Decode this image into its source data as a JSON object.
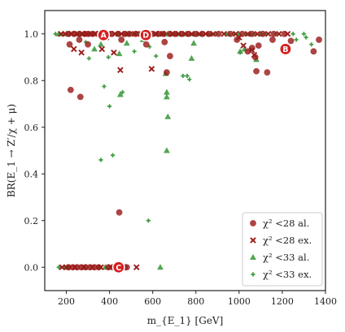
{
  "chart_data": {
    "type": "scatter",
    "title": "",
    "xlabel": "m_{E_1} [GeV]",
    "ylabel": "BR(E_1 → Z′/χ + μ)",
    "xlim": [
      100,
      1400
    ],
    "ylim": [
      -0.1,
      1.1
    ],
    "x_ticks": [
      200,
      400,
      600,
      800,
      1000,
      1200,
      1400
    ],
    "y_ticks": [
      0.0,
      0.2,
      0.4,
      0.6,
      0.8,
      1.0
    ],
    "x_tick_labels": [
      "200",
      "400",
      "600",
      "800",
      "1000",
      "1200",
      "1400"
    ],
    "y_tick_labels": [
      "0.0",
      "0.2",
      "0.4",
      "0.6",
      "0.8",
      "1.0"
    ],
    "grid": false,
    "legend_position": "lower-right",
    "colors": {
      "red_allowed": "#9b1b1b",
      "red_excluded": "#9b1b1b",
      "green_allowed": "#3f9b3f",
      "green_excluded": "#3f9b3f"
    },
    "series": [
      {
        "name": "χ² <28 al.",
        "marker": "circle",
        "points": [
          [
            210,
            1.0
          ],
          [
            235,
            1.0
          ],
          [
            260,
            1.0
          ],
          [
            285,
            1.0
          ],
          [
            300,
            1.0
          ],
          [
            320,
            1.0
          ],
          [
            345,
            1.0
          ],
          [
            380,
            1.0
          ],
          [
            410,
            1.0
          ],
          [
            440,
            1.0
          ],
          [
            470,
            1.0
          ],
          [
            490,
            1.0
          ],
          [
            520,
            1.0
          ],
          [
            550,
            1.0
          ],
          [
            575,
            1.0
          ],
          [
            600,
            1.0
          ],
          [
            625,
            1.0
          ],
          [
            650,
            1.0
          ],
          [
            680,
            1.0
          ],
          [
            705,
            1.0
          ],
          [
            735,
            1.0
          ],
          [
            765,
            1.0
          ],
          [
            800,
            1.0
          ],
          [
            830,
            1.0
          ],
          [
            860,
            1.0
          ],
          [
            905,
            1.0
          ],
          [
            960,
            1.0
          ],
          [
            1015,
            1.0
          ],
          [
            1060,
            1.0
          ],
          [
            1110,
            1.0
          ],
          [
            1160,
            1.0
          ],
          [
            1210,
            1.0
          ],
          [
            260,
            0.975
          ],
          [
            455,
            0.975
          ],
          [
            215,
            0.955
          ],
          [
            300,
            0.955
          ],
          [
            570,
            0.955
          ],
          [
            655,
            0.965
          ],
          [
            990,
            0.975
          ],
          [
            1090,
            0.95
          ],
          [
            1155,
            0.975
          ],
          [
            1240,
            0.97
          ],
          [
            1370,
            0.975
          ],
          [
            1345,
            0.925
          ],
          [
            1075,
            0.9
          ],
          [
            1060,
            0.94
          ],
          [
            1040,
            0.925
          ],
          [
            680,
            0.905
          ],
          [
            665,
            0.835
          ],
          [
            1080,
            0.84
          ],
          [
            1130,
            0.835
          ],
          [
            220,
            0.76
          ],
          [
            265,
            0.73
          ],
          [
            445,
            0.235
          ],
          [
            210,
            0.0
          ],
          [
            230,
            0.0
          ],
          [
            250,
            0.0
          ],
          [
            270,
            0.0
          ],
          [
            290,
            0.0
          ],
          [
            310,
            0.0
          ],
          [
            330,
            0.0
          ],
          [
            350,
            0.0
          ],
          [
            395,
            0.0
          ],
          [
            415,
            0.0
          ],
          [
            440,
            0.0
          ],
          [
            470,
            0.0
          ],
          [
            480,
            0.0
          ]
        ]
      },
      {
        "name": "χ² <28 ex.",
        "marker": "x",
        "points": [
          [
            175,
            1.0
          ],
          [
            195,
            1.0
          ],
          [
            225,
            1.0
          ],
          [
            250,
            1.0
          ],
          [
            275,
            1.0
          ],
          [
            295,
            1.0
          ],
          [
            315,
            1.0
          ],
          [
            335,
            1.0
          ],
          [
            360,
            1.0
          ],
          [
            395,
            1.0
          ],
          [
            425,
            1.0
          ],
          [
            455,
            1.0
          ],
          [
            485,
            1.0
          ],
          [
            515,
            1.0
          ],
          [
            545,
            1.0
          ],
          [
            585,
            1.0
          ],
          [
            615,
            1.0
          ],
          [
            645,
            1.0
          ],
          [
            690,
            1.0
          ],
          [
            720,
            1.0
          ],
          [
            750,
            1.0
          ],
          [
            780,
            1.0
          ],
          [
            815,
            1.0
          ],
          [
            845,
            1.0
          ],
          [
            880,
            1.0
          ],
          [
            930,
            1.0
          ],
          [
            985,
            1.0
          ],
          [
            1040,
            1.0
          ],
          [
            1085,
            1.0
          ],
          [
            1135,
            1.0
          ],
          [
            1185,
            1.0
          ],
          [
            1225,
            1.0
          ],
          [
            385,
            0.985
          ],
          [
            1000,
            0.985
          ],
          [
            1020,
            0.95
          ],
          [
            235,
            0.935
          ],
          [
            270,
            0.92
          ],
          [
            365,
            0.935
          ],
          [
            420,
            0.92
          ],
          [
            1060,
            0.93
          ],
          [
            1070,
            0.91
          ],
          [
            450,
            0.845
          ],
          [
            595,
            0.85
          ],
          [
            180,
            0.0
          ],
          [
            200,
            0.0
          ],
          [
            240,
            0.0
          ],
          [
            280,
            0.0
          ],
          [
            320,
            0.0
          ],
          [
            360,
            0.0
          ],
          [
            405,
            0.0
          ],
          [
            455,
            0.0
          ],
          [
            525,
            0.0
          ]
        ]
      },
      {
        "name": "χ² <33 al.",
        "marker": "triangle",
        "points": [
          [
            165,
            1.0
          ],
          [
            200,
            1.0
          ],
          [
            245,
            1.0
          ],
          [
            280,
            1.0
          ],
          [
            330,
            1.0
          ],
          [
            365,
            1.0
          ],
          [
            400,
            1.0
          ],
          [
            440,
            1.0
          ],
          [
            475,
            1.0
          ],
          [
            530,
            1.0
          ],
          [
            560,
            1.0
          ],
          [
            605,
            1.0
          ],
          [
            640,
            1.0
          ],
          [
            670,
            1.0
          ],
          [
            700,
            1.0
          ],
          [
            725,
            1.0
          ],
          [
            755,
            1.0
          ],
          [
            790,
            1.0
          ],
          [
            825,
            1.0
          ],
          [
            870,
            1.0
          ],
          [
            950,
            1.0
          ],
          [
            1000,
            1.0
          ],
          [
            1050,
            1.0
          ],
          [
            1100,
            1.0
          ],
          [
            360,
            0.955
          ],
          [
            480,
            0.96
          ],
          [
            555,
            0.975
          ],
          [
            1005,
            0.925
          ],
          [
            1025,
            0.935
          ],
          [
            790,
            0.96
          ],
          [
            330,
            0.935
          ],
          [
            445,
            0.915
          ],
          [
            780,
            0.895
          ],
          [
            1080,
            0.89
          ],
          [
            660,
            0.83
          ],
          [
            665,
            0.75
          ],
          [
            665,
            0.73
          ],
          [
            450,
            0.74
          ],
          [
            670,
            0.645
          ],
          [
            665,
            0.5
          ],
          [
            205,
            0.0
          ],
          [
            285,
            0.0
          ],
          [
            380,
            0.0
          ],
          [
            635,
            0.0
          ]
        ]
      },
      {
        "name": "χ² <33 ex.",
        "marker": "plus",
        "points": [
          [
            150,
            1.0
          ],
          [
            185,
            1.0
          ],
          [
            215,
            1.0
          ],
          [
            265,
            1.0
          ],
          [
            310,
            1.0
          ],
          [
            350,
            1.0
          ],
          [
            390,
            1.0
          ],
          [
            430,
            1.0
          ],
          [
            465,
            1.0
          ],
          [
            500,
            1.0
          ],
          [
            540,
            1.0
          ],
          [
            580,
            1.0
          ],
          [
            620,
            1.0
          ],
          [
            660,
            1.0
          ],
          [
            710,
            1.0
          ],
          [
            745,
            1.0
          ],
          [
            775,
            1.0
          ],
          [
            810,
            1.0
          ],
          [
            855,
            1.0
          ],
          [
            895,
            1.0
          ],
          [
            940,
            1.0
          ],
          [
            975,
            1.0
          ],
          [
            1030,
            1.0
          ],
          [
            1070,
            1.0
          ],
          [
            1120,
            1.0
          ],
          [
            1170,
            1.0
          ],
          [
            1250,
            1.0
          ],
          [
            1300,
            1.0
          ],
          [
            290,
            0.965
          ],
          [
            1265,
            0.975
          ],
          [
            1310,
            0.985
          ],
          [
            1335,
            0.955
          ],
          [
            305,
            0.895
          ],
          [
            395,
            0.9
          ],
          [
            515,
            0.925
          ],
          [
            585,
            0.945
          ],
          [
            615,
            0.905
          ],
          [
            740,
            0.82
          ],
          [
            760,
            0.82
          ],
          [
            770,
            0.805
          ],
          [
            1005,
            0.92
          ],
          [
            1055,
            0.93
          ],
          [
            375,
            0.775
          ],
          [
            400,
            0.69
          ],
          [
            460,
            0.75
          ],
          [
            360,
            0.46
          ],
          [
            415,
            0.48
          ],
          [
            580,
            0.2
          ],
          [
            165,
            0.0
          ],
          [
            190,
            0.0
          ],
          [
            215,
            0.0
          ],
          [
            345,
            0.0
          ],
          [
            385,
            0.0
          ]
        ]
      }
    ],
    "annotations": [
      {
        "label": "A",
        "x": 372,
        "y": 0.995
      },
      {
        "label": "D",
        "x": 568,
        "y": 0.995
      },
      {
        "label": "B",
        "x": 1215,
        "y": 0.935
      },
      {
        "label": "C",
        "x": 442,
        "y": 0.0
      }
    ]
  }
}
